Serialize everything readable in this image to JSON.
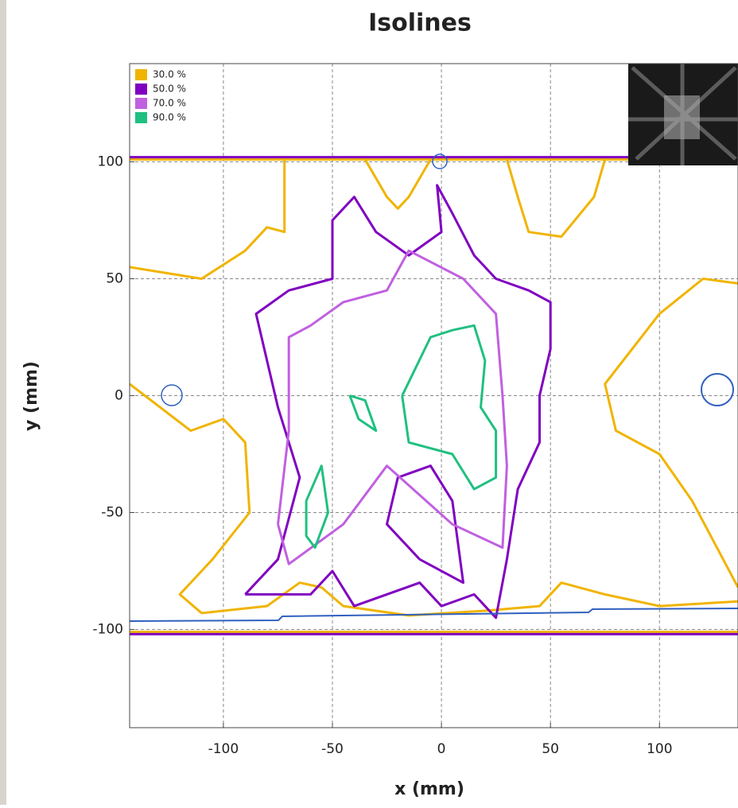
{
  "chart_data": {
    "type": "contour",
    "title": "Isolines",
    "x_label": "x (mm)",
    "y_label": "y (mm)",
    "xlim": [
      -143,
      136
    ],
    "ylim": [
      -142,
      142
    ],
    "xticks": [
      -100,
      -50,
      0,
      50,
      100
    ],
    "yticks": [
      -100,
      -50,
      0,
      50,
      100
    ],
    "grid": true,
    "legend": "upper-left",
    "series": [
      {
        "name": "30.0 %",
        "color": "#f0b400",
        "x": [
          -143,
          -110,
          -90,
          -80,
          -72,
          -72,
          null,
          -35,
          -25,
          -20,
          -15,
          -5,
          null,
          30,
          35,
          40,
          55,
          70,
          75,
          null,
          136,
          120,
          100,
          75,
          80,
          100,
          115,
          136,
          null,
          -143,
          -115,
          -100,
          -90,
          -88,
          -105,
          -120,
          -110,
          -80,
          -65,
          -55,
          -45,
          -15,
          20,
          45,
          55,
          75,
          100,
          136,
          null,
          -143,
          136,
          null,
          -143,
          136
        ],
        "y": [
          55,
          50,
          62,
          72,
          70,
          101,
          null,
          101,
          85,
          80,
          85,
          101,
          null,
          101,
          85,
          70,
          68,
          85,
          101,
          null,
          48,
          50,
          35,
          5,
          -15,
          -25,
          -45,
          -82,
          null,
          5,
          -15,
          -10,
          -20,
          -50,
          -70,
          -85,
          -93,
          -90,
          -80,
          -82,
          -90,
          -94,
          -92,
          -90,
          -80,
          -85,
          -90,
          -88,
          null,
          101,
          101,
          null,
          -101,
          -101
        ]
      },
      {
        "name": "50.0 %",
        "color": "#8000c0",
        "x": [
          -90,
          -75,
          -65,
          -75,
          -85,
          -70,
          -50,
          -50,
          -40,
          -30,
          -15,
          0,
          -2,
          5,
          15,
          25,
          40,
          50,
          50,
          45,
          45,
          35,
          30,
          25,
          15,
          0,
          -10,
          -40,
          -50,
          -60,
          -90,
          null,
          -10,
          -25,
          -20,
          -5,
          5,
          10,
          -10,
          null,
          -143,
          136,
          null,
          -143,
          136
        ],
        "y": [
          -85,
          -70,
          -35,
          -5,
          35,
          45,
          50,
          75,
          85,
          70,
          60,
          70,
          90,
          78,
          60,
          50,
          45,
          40,
          20,
          0,
          -20,
          -40,
          -70,
          -95,
          -85,
          -90,
          -80,
          -90,
          -75,
          -85,
          -85,
          null,
          -70,
          -55,
          -35,
          -30,
          -45,
          -80,
          -70,
          null,
          102,
          102,
          null,
          -102,
          -102
        ]
      },
      {
        "name": "70.0 %",
        "color": "#c060e0",
        "x": [
          -75,
          -70,
          -70,
          -60,
          -45,
          -25,
          -15,
          10,
          25,
          28,
          30,
          28,
          5,
          -25,
          -45,
          -70,
          -75
        ],
        "y": [
          -55,
          -15,
          25,
          30,
          40,
          45,
          62,
          50,
          35,
          0,
          -30,
          -65,
          -55,
          -30,
          -55,
          -72,
          -55
        ]
      },
      {
        "name": "90.0 %",
        "color": "#20c080",
        "x": [
          -18,
          -5,
          5,
          15,
          20,
          18,
          25,
          25,
          15,
          5,
          -15,
          -18,
          null,
          -42,
          -38,
          -30,
          -35,
          -42,
          null,
          -62,
          -55,
          -52,
          -58,
          -62,
          -62
        ],
        "y": [
          0,
          25,
          28,
          30,
          15,
          -5,
          -15,
          -35,
          -40,
          -25,
          -20,
          0,
          null,
          0,
          -10,
          -15,
          -2,
          0,
          null,
          -45,
          -30,
          -50,
          -65,
          -60,
          -45
        ]
      }
    ]
  }
}
